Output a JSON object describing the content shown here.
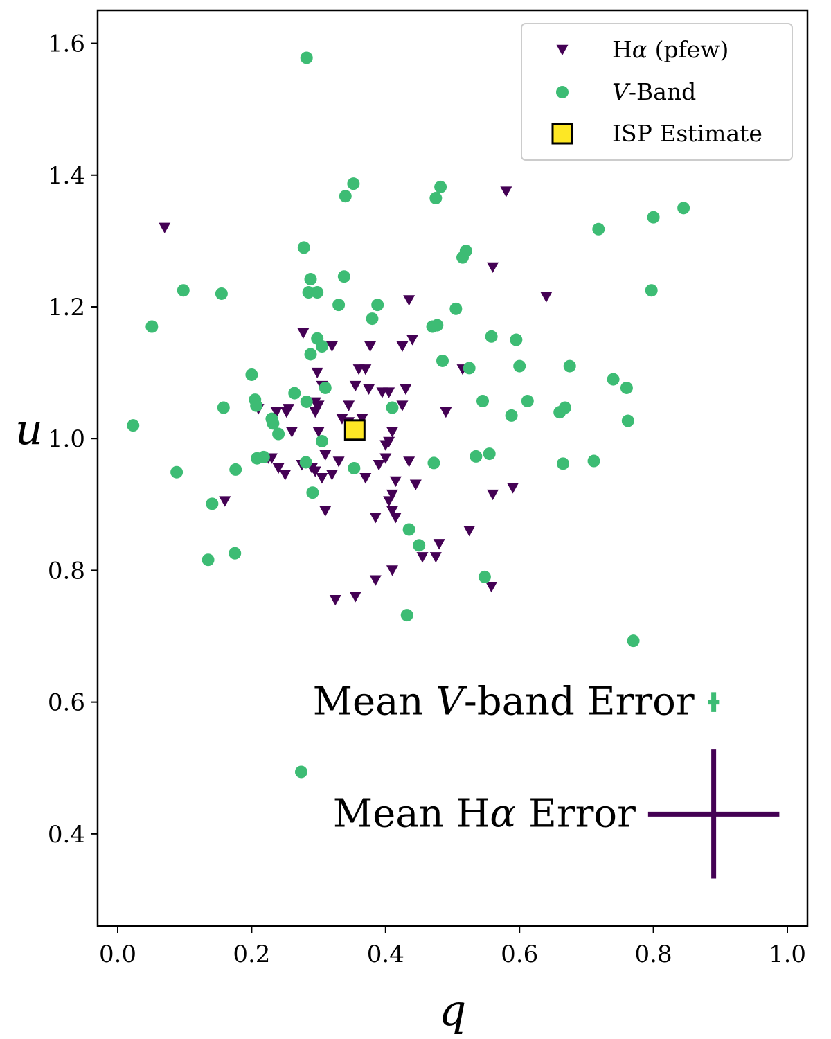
{
  "chart_data": {
    "type": "scatter",
    "xlabel": "q",
    "ylabel": "u",
    "xlim": [
      -0.03,
      1.03
    ],
    "ylim": [
      0.26,
      1.65
    ],
    "xticks": [
      "0.0",
      "0.2",
      "0.4",
      "0.6",
      "0.8",
      "1.0"
    ],
    "yticks": [
      "0.4",
      "0.6",
      "0.8",
      "1.0",
      "1.2",
      "1.4",
      "1.6"
    ],
    "grid": false,
    "legend_position": "top-right",
    "colors": {
      "halpha": "#440154",
      "vband": "#3dbc74",
      "isp": "#fde725",
      "isp_edge": "#000000"
    },
    "legend": [
      {
        "series": "halpha",
        "marker": "down-triangle",
        "label_main": "H",
        "label_greek": "α",
        "label_rest": " (pfew)"
      },
      {
        "series": "vband",
        "marker": "circle",
        "label_italic": "V",
        "label_rest": "-Band"
      },
      {
        "series": "isp",
        "marker": "square",
        "label_rest": "ISP Estimate"
      }
    ],
    "series": [
      {
        "key": "halpha",
        "name": "Hα (pfew)",
        "marker": "down-triangle",
        "points": [
          [
            0.07,
            1.32
          ],
          [
            0.58,
            1.375
          ],
          [
            0.56,
            1.26
          ],
          [
            0.64,
            1.215
          ],
          [
            0.435,
            1.21
          ],
          [
            0.277,
            1.16
          ],
          [
            0.298,
            1.1
          ],
          [
            0.32,
            1.14
          ],
          [
            0.377,
            1.14
          ],
          [
            0.425,
            1.14
          ],
          [
            0.44,
            1.15
          ],
          [
            0.36,
            1.105
          ],
          [
            0.37,
            1.105
          ],
          [
            0.515,
            1.105
          ],
          [
            0.305,
            1.08
          ],
          [
            0.355,
            1.08
          ],
          [
            0.375,
            1.075
          ],
          [
            0.395,
            1.07
          ],
          [
            0.405,
            1.07
          ],
          [
            0.43,
            1.075
          ],
          [
            0.295,
            1.055
          ],
          [
            0.3,
            1.05
          ],
          [
            0.345,
            1.05
          ],
          [
            0.21,
            1.045
          ],
          [
            0.237,
            1.04
          ],
          [
            0.252,
            1.04
          ],
          [
            0.255,
            1.045
          ],
          [
            0.295,
            1.04
          ],
          [
            0.425,
            1.05
          ],
          [
            0.49,
            1.04
          ],
          [
            0.335,
            1.03
          ],
          [
            0.345,
            1.025
          ],
          [
            0.26,
            1.01
          ],
          [
            0.3,
            1.01
          ],
          [
            0.36,
            1.02
          ],
          [
            0.365,
            1.03
          ],
          [
            0.41,
            1.01
          ],
          [
            0.4,
            0.99
          ],
          [
            0.405,
            0.995
          ],
          [
            0.31,
            0.975
          ],
          [
            0.4,
            0.97
          ],
          [
            0.23,
            0.97
          ],
          [
            0.225,
            0.97
          ],
          [
            0.24,
            0.955
          ],
          [
            0.275,
            0.96
          ],
          [
            0.29,
            0.955
          ],
          [
            0.295,
            0.95
          ],
          [
            0.33,
            0.965
          ],
          [
            0.39,
            0.96
          ],
          [
            0.435,
            0.965
          ],
          [
            0.25,
            0.945
          ],
          [
            0.305,
            0.94
          ],
          [
            0.32,
            0.945
          ],
          [
            0.37,
            0.94
          ],
          [
            0.415,
            0.935
          ],
          [
            0.445,
            0.93
          ],
          [
            0.41,
            0.915
          ],
          [
            0.405,
            0.905
          ],
          [
            0.16,
            0.905
          ],
          [
            0.56,
            0.915
          ],
          [
            0.59,
            0.925
          ],
          [
            0.31,
            0.89
          ],
          [
            0.385,
            0.88
          ],
          [
            0.41,
            0.89
          ],
          [
            0.415,
            0.88
          ],
          [
            0.525,
            0.86
          ],
          [
            0.48,
            0.84
          ],
          [
            0.455,
            0.82
          ],
          [
            0.475,
            0.82
          ],
          [
            0.41,
            0.8
          ],
          [
            0.385,
            0.785
          ],
          [
            0.558,
            0.775
          ],
          [
            0.325,
            0.755
          ],
          [
            0.355,
            0.76
          ]
        ]
      },
      {
        "key": "vband",
        "name": "V-Band",
        "marker": "circle",
        "points": [
          [
            0.282,
            1.578
          ],
          [
            0.352,
            1.387
          ],
          [
            0.34,
            1.368
          ],
          [
            0.482,
            1.382
          ],
          [
            0.475,
            1.365
          ],
          [
            0.845,
            1.35
          ],
          [
            0.8,
            1.336
          ],
          [
            0.718,
            1.318
          ],
          [
            0.278,
            1.29
          ],
          [
            0.52,
            1.285
          ],
          [
            0.515,
            1.275
          ],
          [
            0.338,
            1.246
          ],
          [
            0.288,
            1.242
          ],
          [
            0.098,
            1.225
          ],
          [
            0.155,
            1.22
          ],
          [
            0.285,
            1.222
          ],
          [
            0.298,
            1.222
          ],
          [
            0.797,
            1.225
          ],
          [
            0.33,
            1.203
          ],
          [
            0.388,
            1.203
          ],
          [
            0.505,
            1.197
          ],
          [
            0.051,
            1.17
          ],
          [
            0.38,
            1.182
          ],
          [
            0.47,
            1.17
          ],
          [
            0.477,
            1.172
          ],
          [
            0.558,
            1.155
          ],
          [
            0.298,
            1.152
          ],
          [
            0.305,
            1.14
          ],
          [
            0.595,
            1.15
          ],
          [
            0.288,
            1.128
          ],
          [
            0.485,
            1.118
          ],
          [
            0.525,
            1.107
          ],
          [
            0.6,
            1.11
          ],
          [
            0.675,
            1.11
          ],
          [
            0.2,
            1.097
          ],
          [
            0.74,
            1.09
          ],
          [
            0.76,
            1.077
          ],
          [
            0.31,
            1.077
          ],
          [
            0.264,
            1.069
          ],
          [
            0.205,
            1.059
          ],
          [
            0.545,
            1.057
          ],
          [
            0.612,
            1.057
          ],
          [
            0.207,
            1.05
          ],
          [
            0.158,
            1.047
          ],
          [
            0.41,
            1.047
          ],
          [
            0.668,
            1.047
          ],
          [
            0.66,
            1.04
          ],
          [
            0.588,
            1.035
          ],
          [
            0.282,
            1.056
          ],
          [
            0.23,
            1.03
          ],
          [
            0.023,
            1.02
          ],
          [
            0.232,
            1.023
          ],
          [
            0.762,
            1.027
          ],
          [
            0.24,
            1.007
          ],
          [
            0.305,
            0.996
          ],
          [
            0.535,
            0.973
          ],
          [
            0.555,
            0.977
          ],
          [
            0.218,
            0.972
          ],
          [
            0.208,
            0.97
          ],
          [
            0.281,
            0.964
          ],
          [
            0.472,
            0.963
          ],
          [
            0.665,
            0.962
          ],
          [
            0.711,
            0.966
          ],
          [
            0.088,
            0.949
          ],
          [
            0.176,
            0.953
          ],
          [
            0.353,
            0.955
          ],
          [
            0.291,
            0.918
          ],
          [
            0.141,
            0.901
          ],
          [
            0.435,
            0.862
          ],
          [
            0.45,
            0.838
          ],
          [
            0.175,
            0.826
          ],
          [
            0.135,
            0.816
          ],
          [
            0.548,
            0.79
          ],
          [
            0.432,
            0.732
          ],
          [
            0.77,
            0.693
          ],
          [
            0.274,
            0.494
          ]
        ]
      },
      {
        "key": "isp",
        "name": "ISP Estimate",
        "marker": "square",
        "points": [
          [
            0.354,
            1.013
          ]
        ]
      }
    ],
    "annotations": [
      {
        "key": "vband_err",
        "text_pre": "Mean ",
        "text_italic": "V",
        "text_post": "-band Error",
        "color": "#3dbc74",
        "center": [
          0.89,
          0.6
        ],
        "xerr": 0.008,
        "yerr": 0.015
      },
      {
        "key": "halpha_err",
        "text_pre": "Mean H",
        "text_greek": "α",
        "text_post": " Error",
        "color": "#440154",
        "center": [
          0.89,
          0.43
        ],
        "xerr": 0.098,
        "yerr": 0.098
      }
    ]
  }
}
